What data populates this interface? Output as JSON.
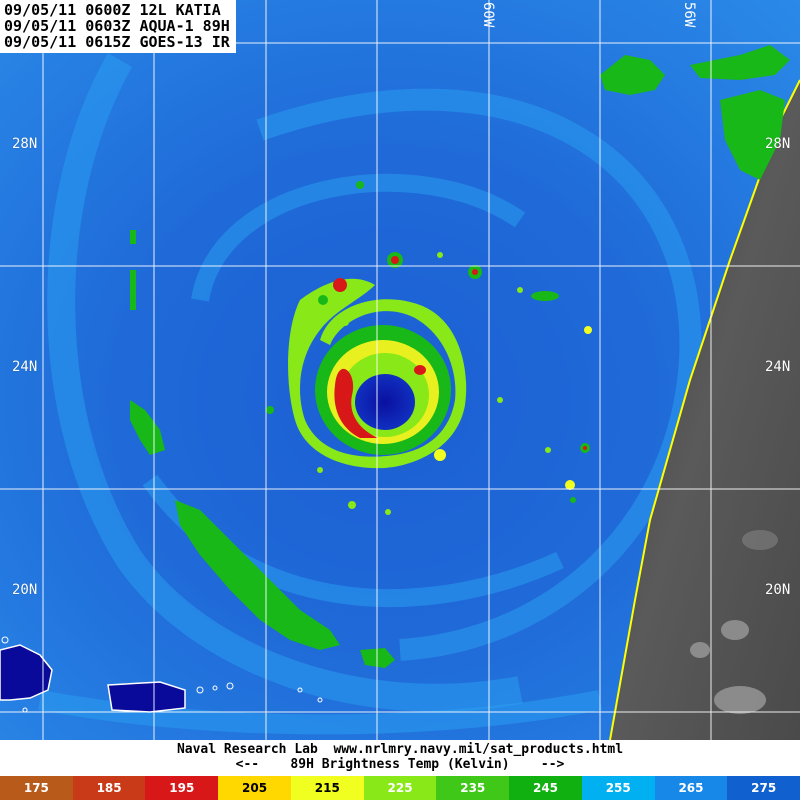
{
  "header": {
    "line1": "09/05/11 0600Z 12L KATIA",
    "line2": "09/05/11 0603Z AQUA-1 89H",
    "line3": "09/05/11 0615Z GOES-13 IR"
  },
  "grid_labels": {
    "lat_28": "28N",
    "lat_24": "24N",
    "lat_20": "20N",
    "lon_60": "60W",
    "lon_56": "56W"
  },
  "footer": {
    "credit": "Naval Research Lab  www.nrlmry.navy.mil/sat_products.html",
    "scale_title": "<--    89H Brightness Temp (Kelvin)    -->"
  },
  "colorbar": {
    "ticks": [
      "175",
      "185",
      "195",
      "205",
      "215",
      "225",
      "235",
      "245",
      "255",
      "265",
      "275"
    ],
    "colors": [
      "#b85a1a",
      "#c83a18",
      "#d81818",
      "#ffd800",
      "#f0ff20",
      "#88e818",
      "#40c818",
      "#10b010",
      "#00b0f0",
      "#1888e8",
      "#1060d0"
    ]
  },
  "map_colors": {
    "ocean": "#1a6ad8",
    "band_light": "#2a98f0",
    "land_green": "#18b818",
    "eye": "#0a20b0",
    "ir_gray": "#555555",
    "swath_edge": "#ffff00",
    "island_navy": "#0a0a9a"
  }
}
